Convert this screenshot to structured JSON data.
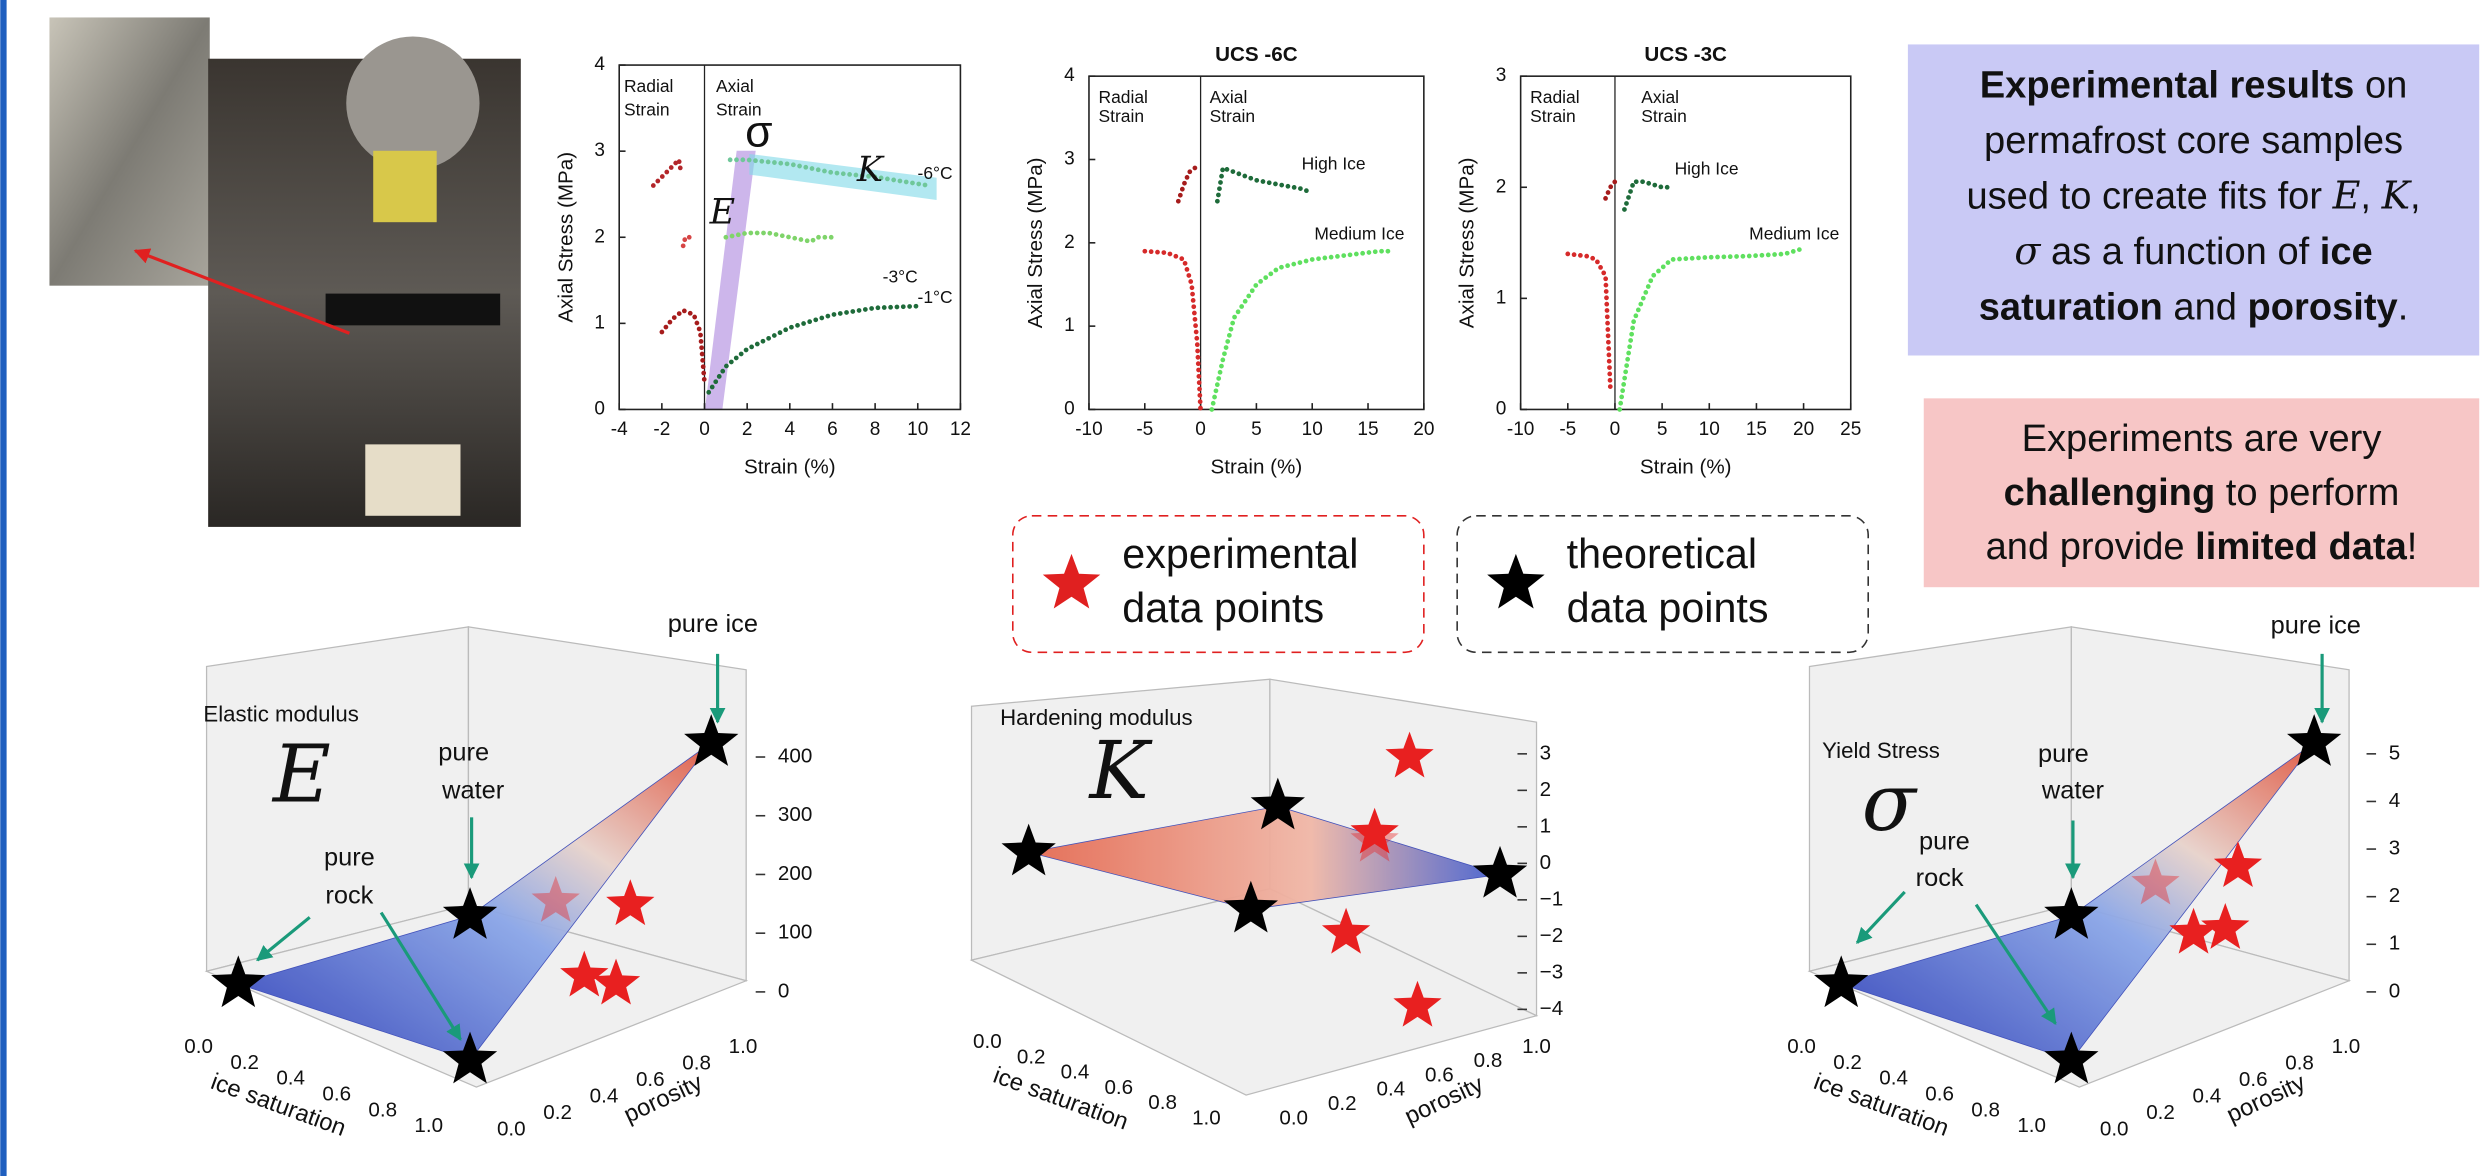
{
  "stress_plots": [
    {
      "xlim": [
        -4,
        12
      ],
      "ylim": [
        0,
        4
      ],
      "xticks": [
        -4,
        -2,
        0,
        2,
        4,
        6,
        8,
        10,
        12
      ],
      "yticks": [
        0,
        1,
        2,
        3,
        4
      ],
      "xlabel": "Strain (%)",
      "ylabel": "Axial Stress (MPa)",
      "annotations": [
        "Radial",
        "Strain",
        "Axial",
        "Strain",
        "-6°C",
        "-3°C",
        "-1°C",
        "σ",
        "E",
        "K"
      ],
      "series": [
        {
          "color": "#b3262a",
          "x": [
            -2.4,
            -2.2,
            -1.8,
            -1.4,
            -1.2,
            -1.1
          ],
          "y": [
            2.6,
            2.65,
            2.75,
            2.85,
            2.9,
            2.75
          ]
        },
        {
          "color": "#d64545",
          "x": [
            -1.0,
            -0.9,
            -0.7,
            -0.5
          ],
          "y": [
            1.9,
            2.0,
            2.0,
            2.05
          ]
        },
        {
          "color": "#a61c1c",
          "x": [
            -2.0,
            -1.5,
            -1.0,
            -0.5,
            -0.2,
            0
          ],
          "y": [
            0.9,
            1.05,
            1.15,
            1.1,
            0.9,
            0.3
          ]
        },
        {
          "color": "#6fc79a",
          "x": [
            1.2,
            2,
            4,
            6,
            8,
            10.5
          ],
          "y": [
            2.9,
            2.9,
            2.85,
            2.75,
            2.7,
            2.6
          ]
        },
        {
          "color": "#7fd46a",
          "x": [
            1.0,
            2,
            3,
            4,
            5,
            5.3,
            5.8,
            6.2
          ],
          "y": [
            2.0,
            2.05,
            2.05,
            2.0,
            1.95,
            2.0,
            2.0,
            2.0
          ]
        },
        {
          "color": "#1e6b3a",
          "x": [
            0.2,
            1,
            2,
            4,
            6,
            8,
            10
          ],
          "y": [
            0.2,
            0.5,
            0.7,
            0.95,
            1.1,
            1.18,
            1.2
          ]
        }
      ]
    },
    {
      "title": "UCS -6C",
      "xlim": [
        -10,
        20
      ],
      "ylim": [
        0,
        4
      ],
      "xticks": [
        -10,
        -5,
        0,
        5,
        10,
        15,
        20
      ],
      "yticks": [
        0,
        1,
        2,
        3,
        4
      ],
      "xlabel": "Strain (%)",
      "ylabel": "Axial Stress (MPa)",
      "annotations": [
        "Radial",
        "Strain",
        "Axial",
        "Strain",
        "High Ice",
        "Medium Ice"
      ],
      "series": [
        {
          "color": "#d62a2a",
          "x": [
            -5,
            -3,
            -1.5,
            -0.8,
            -0.3,
            0
          ],
          "y": [
            1.9,
            1.88,
            1.8,
            1.5,
            0.8,
            0
          ]
        },
        {
          "color": "#a61c1c",
          "x": [
            -2,
            -1.5,
            -1,
            -0.5
          ],
          "y": [
            2.5,
            2.7,
            2.85,
            2.9
          ]
        },
        {
          "color": "#1e6b3a",
          "x": [
            1.5,
            2,
            3,
            5,
            7,
            9,
            10
          ],
          "y": [
            2.5,
            2.9,
            2.85,
            2.75,
            2.7,
            2.65,
            2.6
          ]
        },
        {
          "color": "#5fe05f",
          "x": [
            1,
            2,
            3,
            5,
            7,
            10,
            13,
            16,
            17
          ],
          "y": [
            0,
            0.6,
            1.1,
            1.5,
            1.7,
            1.8,
            1.85,
            1.9,
            1.9
          ]
        }
      ]
    },
    {
      "title": "UCS -3C",
      "xlim": [
        -10,
        25
      ],
      "ylim": [
        0,
        3
      ],
      "xticks": [
        -10,
        -5,
        0,
        5,
        10,
        15,
        20,
        25
      ],
      "yticks": [
        0,
        1,
        2,
        3
      ],
      "xlabel": "Strain (%)",
      "ylabel": "Axial Stress (MPa)",
      "annotations": [
        "Radial",
        "Strain",
        "Axial",
        "Strain",
        "High Ice",
        "Medium Ice"
      ],
      "series": [
        {
          "color": "#d62a2a",
          "x": [
            -5,
            -3,
            -2,
            -1,
            -0.5
          ],
          "y": [
            1.4,
            1.38,
            1.35,
            1.2,
            0.2
          ]
        },
        {
          "color": "#a61c1c",
          "x": [
            -1,
            -0.5,
            0
          ],
          "y": [
            1.9,
            2.0,
            2.05
          ]
        },
        {
          "color": "#1e6b3a",
          "x": [
            1,
            2,
            3,
            5,
            6
          ],
          "y": [
            1.8,
            2.05,
            2.05,
            2.0,
            2.0
          ]
        },
        {
          "color": "#5fe05f",
          "x": [
            0.5,
            2,
            4,
            6,
            10,
            14,
            18,
            20
          ],
          "y": [
            0,
            0.8,
            1.2,
            1.35,
            1.37,
            1.38,
            1.4,
            1.45
          ]
        }
      ]
    }
  ],
  "legend_boxes": [
    {
      "lines": [
        "experimental",
        "data points"
      ],
      "color": "#e02020"
    },
    {
      "lines": [
        "theoretical",
        "data points"
      ],
      "color": "#000000"
    }
  ],
  "info_boxes": [
    {
      "color": "#c9c9f5",
      "lines": [
        [
          {
            "text": "Experimental results",
            "style": "bold"
          },
          {
            "text": " on",
            "style": "normal"
          }
        ],
        [
          {
            "text": "permafrost core samples",
            "style": "normal"
          }
        ],
        [
          {
            "text": "used to create fits for ",
            "style": "normal"
          },
          {
            "text": "E",
            "style": "italic"
          },
          {
            "text": ", ",
            "style": "normal"
          },
          {
            "text": "K",
            "style": "italic"
          },
          {
            "text": ",",
            "style": "normal"
          }
        ],
        [
          {
            "text": "σ",
            "style": "italic"
          },
          {
            "text": " as a function of ",
            "style": "normal"
          },
          {
            "text": "ice",
            "style": "bold"
          }
        ],
        [
          {
            "text": "saturation",
            "style": "bold"
          },
          {
            "text": " and ",
            "style": "normal"
          },
          {
            "text": "porosity",
            "style": "bold"
          },
          {
            "text": ".",
            "style": "normal"
          }
        ]
      ]
    },
    {
      "color": "#f7c6c6",
      "lines": [
        [
          {
            "text": "Experiments are very",
            "style": "normal"
          }
        ],
        [
          {
            "text": "challenging",
            "style": "bold"
          },
          {
            "text": " to perform",
            "style": "normal"
          }
        ],
        [
          {
            "text": "and provide ",
            "style": "normal"
          },
          {
            "text": "limited data",
            "style": "bold"
          },
          {
            "text": "!",
            "style": "normal"
          }
        ]
      ]
    }
  ],
  "surface_plots": [
    {
      "name": "Elastic modulus",
      "symbol": "E",
      "zticks": [
        "0",
        "100",
        "200",
        "300",
        "400"
      ],
      "xticks": [
        "0.0",
        "0.2",
        "0.4",
        "0.6",
        "0.8",
        "1.0"
      ],
      "yticks": [
        "0.0",
        "0.2",
        "0.4",
        "0.6",
        "0.8",
        "1.0"
      ],
      "xlabel": "ice saturation",
      "ylabel": "porosity",
      "pure_ice": "pure ice",
      "pure_water": [
        "pure",
        "water"
      ],
      "pure_rock": [
        "pure",
        "rock"
      ]
    },
    {
      "name": "Hardening modulus",
      "symbol": "K",
      "zticks": [
        "3",
        "2",
        "1",
        "0",
        "−1",
        "−2",
        "−3",
        "−4"
      ],
      "xticks": [
        "0.0",
        "0.2",
        "0.4",
        "0.6",
        "0.8",
        "1.0"
      ],
      "yticks": [
        "0.0",
        "0.2",
        "0.4",
        "0.6",
        "0.8",
        "1.0"
      ],
      "xlabel": "ice saturation",
      "ylabel": "porosity"
    },
    {
      "name": "Yield Stress",
      "symbol": "σ",
      "zticks": [
        "0",
        "1",
        "2",
        "3",
        "4",
        "5"
      ],
      "xticks": [
        "0.0",
        "0.2",
        "0.4",
        "0.6",
        "0.8",
        "1.0"
      ],
      "yticks": [
        "0.0",
        "0.2",
        "0.4",
        "0.6",
        "0.8",
        "1.0"
      ],
      "xlabel": "ice saturation",
      "ylabel": "porosity",
      "pure_ice": "pure ice",
      "pure_water": [
        "pure",
        "water"
      ],
      "pure_rock": [
        "pure",
        "rock"
      ]
    }
  ]
}
